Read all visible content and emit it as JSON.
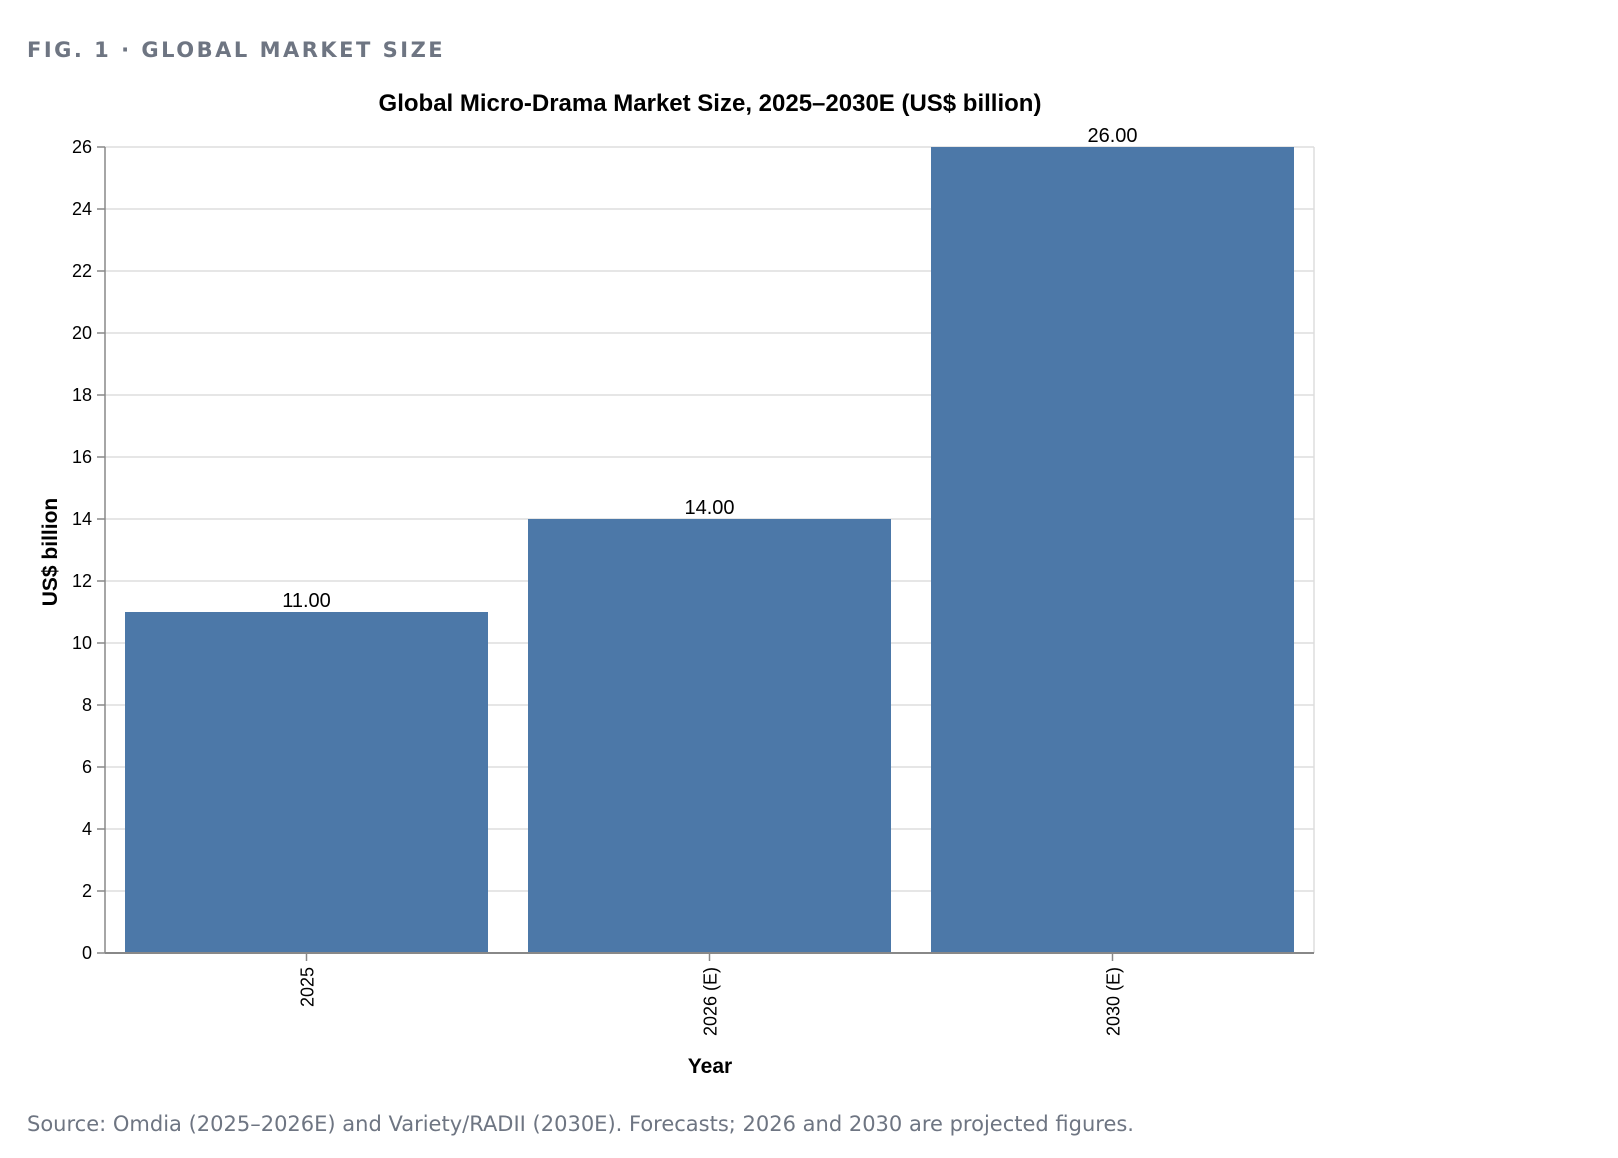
{
  "figure": {
    "label": "FIG. 1 · GLOBAL MARKET SIZE",
    "source": "Source: Omdia (2025–2026E) and Variety/RADII (2030E). Forecasts; 2026 and 2030 are projected figures."
  },
  "colors": {
    "bar": "#4c78a8",
    "grid": "#dddddd",
    "axis": "#888888",
    "text": "#000000",
    "muted": "#6e7582"
  },
  "chart_data": {
    "type": "bar",
    "title": "Global Micro-Drama Market Size, 2025–2030E (US$ billion)",
    "xlabel": "Year",
    "ylabel": "US$ billion",
    "categories": [
      "2025",
      "2026 (E)",
      "2030 (E)"
    ],
    "values": [
      11,
      14,
      26
    ],
    "value_labels": [
      "11.00",
      "14.00",
      "26.00"
    ],
    "ylim": [
      0,
      26
    ],
    "yticks": [
      "0",
      "2",
      "4",
      "6",
      "8",
      "10",
      "12",
      "14",
      "16",
      "18",
      "20",
      "22",
      "24",
      "26"
    ],
    "grid": true,
    "legend": "none"
  }
}
